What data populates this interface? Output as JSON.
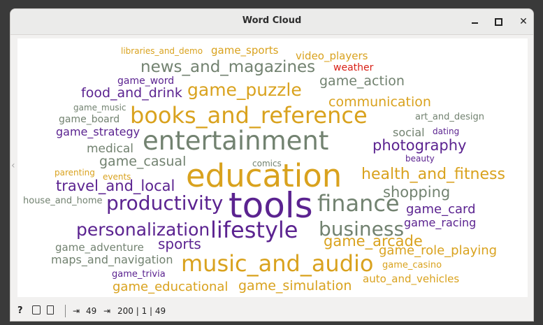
{
  "window": {
    "title": "Word Cloud"
  },
  "colors": {
    "gold": "#d9a21e",
    "purple": "#5b2390",
    "gray": "#728270",
    "red": "#d81f15"
  },
  "words": [
    {
      "text": "libraries_and_demo",
      "color": "#d9a21e"
    },
    {
      "text": "game_sports",
      "color": "#d9a21e"
    },
    {
      "text": "video_players",
      "color": "#d9a21e"
    },
    {
      "text": "news_and_magazines",
      "color": "#728270"
    },
    {
      "text": "weather",
      "color": "#d81f15"
    },
    {
      "text": "game_word",
      "color": "#5b2390"
    },
    {
      "text": "game_action",
      "color": "#728270"
    },
    {
      "text": "food_and_drink",
      "color": "#5b2390"
    },
    {
      "text": "game_puzzle",
      "color": "#d9a21e"
    },
    {
      "text": "communication",
      "color": "#d9a21e"
    },
    {
      "text": "game_music",
      "color": "#728270"
    },
    {
      "text": "game_board",
      "color": "#728270"
    },
    {
      "text": "books_and_reference",
      "color": "#d9a21e"
    },
    {
      "text": "art_and_design",
      "color": "#728270"
    },
    {
      "text": "game_strategy",
      "color": "#5b2390"
    },
    {
      "text": "social",
      "color": "#728270"
    },
    {
      "text": "dating",
      "color": "#5b2390"
    },
    {
      "text": "entertainment",
      "color": "#728270"
    },
    {
      "text": "medical",
      "color": "#728270"
    },
    {
      "text": "photography",
      "color": "#5b2390"
    },
    {
      "text": "beauty",
      "color": "#5b2390"
    },
    {
      "text": "game_casual",
      "color": "#728270"
    },
    {
      "text": "comics",
      "color": "#728270"
    },
    {
      "text": "parenting",
      "color": "#d9a21e"
    },
    {
      "text": "events",
      "color": "#d9a21e"
    },
    {
      "text": "education",
      "color": "#d9a21e"
    },
    {
      "text": "health_and_fitness",
      "color": "#d9a21e"
    },
    {
      "text": "travel_and_local",
      "color": "#5b2390"
    },
    {
      "text": "shopping",
      "color": "#728270"
    },
    {
      "text": "house_and_home",
      "color": "#728270"
    },
    {
      "text": "productivity",
      "color": "#5b2390"
    },
    {
      "text": "tools",
      "color": "#5b2390"
    },
    {
      "text": "finance",
      "color": "#728270"
    },
    {
      "text": "game_card",
      "color": "#5b2390"
    },
    {
      "text": "game_racing",
      "color": "#5b2390"
    },
    {
      "text": "personalization",
      "color": "#5b2390"
    },
    {
      "text": "business",
      "color": "#728270"
    },
    {
      "text": "lifestyle",
      "color": "#5b2390"
    },
    {
      "text": "sports",
      "color": "#5b2390"
    },
    {
      "text": "game_arcade",
      "color": "#d9a21e"
    },
    {
      "text": "game_adventure",
      "color": "#728270"
    },
    {
      "text": "game_role_playing",
      "color": "#d9a21e"
    },
    {
      "text": "maps_and_navigation",
      "color": "#728270"
    },
    {
      "text": "music_and_audio",
      "color": "#d9a21e"
    },
    {
      "text": "game_casino",
      "color": "#d9a21e"
    },
    {
      "text": "game_trivia",
      "color": "#5b2390"
    },
    {
      "text": "auto_and_vehicles",
      "color": "#d9a21e"
    },
    {
      "text": "game_educational",
      "color": "#d9a21e"
    },
    {
      "text": "game_simulation",
      "color": "#d9a21e"
    }
  ],
  "statusbar": {
    "input_count": "49",
    "output_summary": "200 | 1 | 49"
  }
}
